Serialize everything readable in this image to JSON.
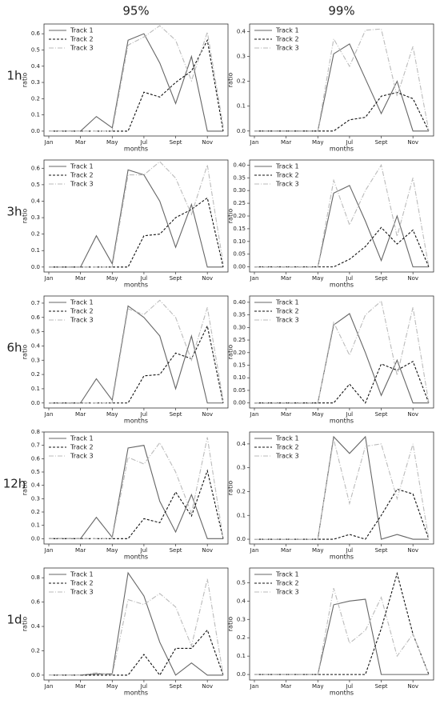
{
  "columns": [
    "95%",
    "99%"
  ],
  "rows": [
    "1h",
    "3h",
    "6h",
    "12h",
    "1d"
  ],
  "chart_data": [
    {
      "type": "line",
      "xlabel": "months",
      "ylabel": "ratio",
      "legend": "upper left",
      "categories": [
        "Jan",
        null,
        "Mar",
        null,
        "May",
        null,
        "Jul",
        null,
        "Sept",
        null,
        "Nov",
        null
      ],
      "ylim": [
        -0.03,
        0.66
      ],
      "yticks": [
        {
          "value": 0,
          "label": "0.0"
        },
        {
          "value": 0.1,
          "label": "0.1"
        },
        {
          "value": 0.2,
          "label": "0.2"
        },
        {
          "value": 0.3,
          "label": "0.3"
        },
        {
          "value": 0.4,
          "label": "0.4"
        },
        {
          "value": 0.5,
          "label": "0.5"
        },
        {
          "value": 0.6,
          "label": "0.6"
        }
      ],
      "series": [
        {
          "name": "Track 1",
          "color": "#666666",
          "linestyle": "solid",
          "values": [
            0,
            0,
            0,
            0.09,
            0.02,
            0.56,
            0.6,
            0.42,
            0.17,
            0.46,
            0,
            0
          ]
        },
        {
          "name": "Track 2",
          "color": "#111111",
          "linestyle": "dashed",
          "values": [
            0,
            0,
            0,
            0,
            0,
            0,
            0.24,
            0.21,
            0.3,
            0.37,
            0.56,
            0
          ]
        },
        {
          "name": "Track 3",
          "color": "#bbbbbb",
          "linestyle": "dashdot",
          "values": [
            0,
            0,
            0,
            0,
            0,
            0.53,
            0.58,
            0.65,
            0.56,
            0.31,
            0.61,
            0.03
          ]
        }
      ]
    },
    {
      "type": "line",
      "xlabel": "months",
      "ylabel": "ratio",
      "legend": "upper left",
      "categories": [
        "Jan",
        null,
        "Mar",
        null,
        "May",
        null,
        "Jul",
        null,
        "Sept",
        null,
        "Nov",
        null
      ],
      "ylim": [
        -0.02,
        0.43
      ],
      "yticks": [
        {
          "value": 0,
          "label": "0.0"
        },
        {
          "value": 0.1,
          "label": "0.1"
        },
        {
          "value": 0.2,
          "label": "0.2"
        },
        {
          "value": 0.3,
          "label": "0.3"
        },
        {
          "value": 0.4,
          "label": "0.4"
        }
      ],
      "series": [
        {
          "name": "Track 1",
          "color": "#666666",
          "linestyle": "solid",
          "values": [
            0,
            0,
            0,
            0,
            0,
            0.31,
            0.35,
            0.21,
            0.07,
            0.2,
            0,
            0
          ]
        },
        {
          "name": "Track 2",
          "color": "#111111",
          "linestyle": "dashed",
          "values": [
            0,
            0,
            0,
            0,
            0,
            0,
            0.045,
            0.055,
            0.14,
            0.155,
            0.13,
            0
          ]
        },
        {
          "name": "Track 3",
          "color": "#bbbbbb",
          "linestyle": "dashdot",
          "values": [
            0,
            0,
            0,
            0,
            0,
            0.37,
            0.26,
            0.405,
            0.41,
            0.14,
            0.34,
            0
          ]
        }
      ]
    },
    {
      "type": "line",
      "xlabel": "months",
      "ylabel": "ratio",
      "legend": "upper left",
      "categories": [
        "Jan",
        null,
        "Mar",
        null,
        "May",
        null,
        "Jul",
        null,
        "Sept",
        null,
        "Nov",
        null
      ],
      "ylim": [
        -0.03,
        0.65
      ],
      "yticks": [
        {
          "value": 0,
          "label": "0.0"
        },
        {
          "value": 0.1,
          "label": "0.1"
        },
        {
          "value": 0.2,
          "label": "0.2"
        },
        {
          "value": 0.3,
          "label": "0.3"
        },
        {
          "value": 0.4,
          "label": "0.4"
        },
        {
          "value": 0.5,
          "label": "0.5"
        },
        {
          "value": 0.6,
          "label": "0.6"
        }
      ],
      "series": [
        {
          "name": "Track 1",
          "color": "#666666",
          "linestyle": "solid",
          "values": [
            0,
            0,
            0,
            0.19,
            0.02,
            0.59,
            0.56,
            0.4,
            0.12,
            0.38,
            0,
            0
          ]
        },
        {
          "name": "Track 2",
          "color": "#111111",
          "linestyle": "dashed",
          "values": [
            0,
            0,
            0,
            0,
            0,
            0,
            0.19,
            0.2,
            0.3,
            0.35,
            0.42,
            0
          ]
        },
        {
          "name": "Track 3",
          "color": "#bbbbbb",
          "linestyle": "dashdot",
          "values": [
            0,
            0,
            0,
            0,
            0,
            0.56,
            0.56,
            0.64,
            0.54,
            0.32,
            0.62,
            0.02
          ]
        }
      ]
    },
    {
      "type": "line",
      "xlabel": "months",
      "ylabel": "ratio",
      "legend": "upper left",
      "categories": [
        "Jan",
        null,
        "Mar",
        null,
        "May",
        null,
        "Jul",
        null,
        "Sept",
        null,
        "Nov",
        null
      ],
      "ylim": [
        -0.02,
        0.42
      ],
      "yticks": [
        {
          "value": 0,
          "label": "0.00"
        },
        {
          "value": 0.05,
          "label": "0.05"
        },
        {
          "value": 0.1,
          "label": "0.10"
        },
        {
          "value": 0.15,
          "label": "0.15"
        },
        {
          "value": 0.2,
          "label": "0.20"
        },
        {
          "value": 0.25,
          "label": "0.25"
        },
        {
          "value": 0.3,
          "label": "0.30"
        },
        {
          "value": 0.35,
          "label": "0.35"
        },
        {
          "value": 0.4,
          "label": "0.40"
        }
      ],
      "series": [
        {
          "name": "Track 1",
          "color": "#666666",
          "linestyle": "solid",
          "values": [
            0,
            0,
            0,
            0,
            0,
            0.29,
            0.32,
            0.18,
            0.025,
            0.2,
            0,
            0
          ]
        },
        {
          "name": "Track 2",
          "color": "#111111",
          "linestyle": "dashed",
          "values": [
            0,
            0,
            0,
            0,
            0,
            0,
            0.03,
            0.08,
            0.155,
            0.09,
            0.145,
            0
          ]
        },
        {
          "name": "Track 3",
          "color": "#bbbbbb",
          "linestyle": "dashdot",
          "values": [
            0,
            0,
            0,
            0,
            0,
            0.34,
            0.165,
            0.3,
            0.4,
            0.12,
            0.35,
            0
          ]
        }
      ]
    },
    {
      "type": "line",
      "xlabel": "months",
      "ylabel": "ratio",
      "legend": "upper left",
      "categories": [
        "Jan",
        null,
        "Mar",
        null,
        "May",
        null,
        "Jul",
        null,
        "Sept",
        null,
        "Nov",
        null
      ],
      "ylim": [
        -0.035,
        0.75
      ],
      "yticks": [
        {
          "value": 0,
          "label": "0.0"
        },
        {
          "value": 0.1,
          "label": "0.1"
        },
        {
          "value": 0.2,
          "label": "0.2"
        },
        {
          "value": 0.3,
          "label": "0.3"
        },
        {
          "value": 0.4,
          "label": "0.4"
        },
        {
          "value": 0.5,
          "label": "0.5"
        },
        {
          "value": 0.6,
          "label": "0.6"
        },
        {
          "value": 0.7,
          "label": "0.7"
        }
      ],
      "series": [
        {
          "name": "Track 1",
          "color": "#666666",
          "linestyle": "solid",
          "values": [
            0,
            0,
            0,
            0.17,
            0.02,
            0.68,
            0.6,
            0.47,
            0.1,
            0.47,
            0,
            0
          ]
        },
        {
          "name": "Track 2",
          "color": "#111111",
          "linestyle": "dashed",
          "values": [
            0,
            0,
            0,
            0,
            0,
            0,
            0.19,
            0.2,
            0.35,
            0.31,
            0.54,
            0
          ]
        },
        {
          "name": "Track 3",
          "color": "#bbbbbb",
          "linestyle": "dashdot",
          "values": [
            0,
            0,
            0,
            0,
            0,
            0.66,
            0.62,
            0.72,
            0.6,
            0.3,
            0.67,
            0.02
          ]
        }
      ]
    },
    {
      "type": "line",
      "xlabel": "months",
      "ylabel": "ratio",
      "legend": "upper left",
      "categories": [
        "Jan",
        null,
        "Mar",
        null,
        "May",
        null,
        "Jul",
        null,
        "Sept",
        null,
        "Nov",
        null
      ],
      "ylim": [
        -0.02,
        0.425
      ],
      "yticks": [
        {
          "value": 0,
          "label": "0.00"
        },
        {
          "value": 0.05,
          "label": "0.05"
        },
        {
          "value": 0.1,
          "label": "0.10"
        },
        {
          "value": 0.15,
          "label": "0.15"
        },
        {
          "value": 0.2,
          "label": "0.20"
        },
        {
          "value": 0.25,
          "label": "0.25"
        },
        {
          "value": 0.3,
          "label": "0.30"
        },
        {
          "value": 0.35,
          "label": "0.35"
        },
        {
          "value": 0.4,
          "label": "0.40"
        }
      ],
      "series": [
        {
          "name": "Track 1",
          "color": "#666666",
          "linestyle": "solid",
          "values": [
            0,
            0,
            0,
            0,
            0,
            0.31,
            0.355,
            0.2,
            0.03,
            0.17,
            0,
            0
          ]
        },
        {
          "name": "Track 2",
          "color": "#111111",
          "linestyle": "dashed",
          "values": [
            0,
            0,
            0,
            0,
            0,
            0,
            0.075,
            0,
            0.155,
            0.13,
            0.165,
            0
          ]
        },
        {
          "name": "Track 3",
          "color": "#bbbbbb",
          "linestyle": "dashdot",
          "values": [
            0,
            0,
            0,
            0,
            0,
            0.32,
            0.19,
            0.35,
            0.405,
            0.11,
            0.38,
            0
          ]
        }
      ]
    },
    {
      "type": "line",
      "xlabel": "months",
      "ylabel": "ratio",
      "legend": "upper left",
      "categories": [
        "Jan",
        null,
        "Mar",
        null,
        "May",
        null,
        "Jul",
        null,
        "Sept",
        null,
        "Nov",
        null
      ],
      "ylim": [
        -0.04,
        0.8
      ],
      "yticks": [
        {
          "value": 0,
          "label": "0.0"
        },
        {
          "value": 0.1,
          "label": "0.1"
        },
        {
          "value": 0.2,
          "label": "0.2"
        },
        {
          "value": 0.3,
          "label": "0.3"
        },
        {
          "value": 0.4,
          "label": "0.4"
        },
        {
          "value": 0.5,
          "label": "0.5"
        },
        {
          "value": 0.6,
          "label": "0.6"
        },
        {
          "value": 0.7,
          "label": "0.7"
        },
        {
          "value": 0.8,
          "label": "0.8"
        }
      ],
      "series": [
        {
          "name": "Track 1",
          "color": "#666666",
          "linestyle": "solid",
          "values": [
            0,
            0,
            0,
            0.16,
            0.01,
            0.68,
            0.7,
            0.28,
            0.05,
            0.33,
            0,
            0
          ]
        },
        {
          "name": "Track 2",
          "color": "#111111",
          "linestyle": "dashed",
          "values": [
            0,
            0,
            0,
            0,
            0,
            0,
            0.15,
            0.12,
            0.35,
            0.17,
            0.51,
            0
          ]
        },
        {
          "name": "Track 3",
          "color": "#bbbbbb",
          "linestyle": "dashdot",
          "values": [
            0,
            0,
            0,
            0,
            0,
            0.61,
            0.56,
            0.72,
            0.5,
            0.19,
            0.76,
            0
          ]
        }
      ]
    },
    {
      "type": "line",
      "xlabel": "months",
      "ylabel": "ratio",
      "legend": "upper left",
      "categories": [
        "Jan",
        null,
        "Mar",
        null,
        "May",
        null,
        "Jul",
        null,
        "Sept",
        null,
        "Nov",
        null
      ],
      "ylim": [
        -0.02,
        0.45
      ],
      "yticks": [
        {
          "value": 0,
          "label": "0.0"
        },
        {
          "value": 0.1,
          "label": "0.1"
        },
        {
          "value": 0.2,
          "label": "0.2"
        },
        {
          "value": 0.3,
          "label": "0.3"
        },
        {
          "value": 0.4,
          "label": "0.4"
        }
      ],
      "series": [
        {
          "name": "Track 1",
          "color": "#666666",
          "linestyle": "solid",
          "values": [
            0,
            0,
            0,
            0,
            0,
            0.43,
            0.36,
            0.43,
            0,
            0.02,
            0,
            0
          ]
        },
        {
          "name": "Track 2",
          "color": "#111111",
          "linestyle": "dashed",
          "values": [
            0,
            0,
            0,
            0,
            0,
            0,
            0.02,
            0,
            0.1,
            0.21,
            0.19,
            0
          ]
        },
        {
          "name": "Track 3",
          "color": "#bbbbbb",
          "linestyle": "dashdot",
          "values": [
            0,
            0,
            0,
            0,
            0,
            0.42,
            0.15,
            0.39,
            0.4,
            0.17,
            0.4,
            0
          ]
        }
      ]
    },
    {
      "type": "line",
      "xlabel": "months",
      "ylabel": "ratio",
      "legend": "upper left",
      "categories": [
        "Jan",
        null,
        "Mar",
        null,
        "May",
        null,
        "Jul",
        null,
        "Sept",
        null,
        "Nov",
        null
      ],
      "ylim": [
        -0.04,
        0.88
      ],
      "yticks": [
        {
          "value": 0,
          "label": "0.0"
        },
        {
          "value": 0.2,
          "label": "0.2"
        },
        {
          "value": 0.4,
          "label": "0.4"
        },
        {
          "value": 0.6,
          "label": "0.6"
        },
        {
          "value": 0.8,
          "label": "0.8"
        }
      ],
      "series": [
        {
          "name": "Track 1",
          "color": "#666666",
          "linestyle": "solid",
          "values": [
            0,
            0,
            0,
            0.01,
            0.01,
            0.84,
            0.65,
            0.27,
            0,
            0.1,
            0,
            0
          ]
        },
        {
          "name": "Track 2",
          "color": "#111111",
          "linestyle": "dashed",
          "values": [
            0,
            0,
            0,
            0,
            0,
            0,
            0.17,
            0,
            0.22,
            0.22,
            0.37,
            0
          ]
        },
        {
          "name": "Track 3",
          "color": "#bbbbbb",
          "linestyle": "dashdot",
          "values": [
            0,
            0,
            0,
            0.02,
            0,
            0.62,
            0.58,
            0.67,
            0.56,
            0.24,
            0.79,
            0
          ]
        }
      ]
    },
    {
      "type": "line",
      "xlabel": "months",
      "ylabel": "ratio",
      "legend": "upper left",
      "categories": [
        "Jan",
        null,
        "Mar",
        null,
        "May",
        null,
        "Jul",
        null,
        "Sept",
        null,
        "Nov",
        null
      ],
      "ylim": [
        -0.03,
        0.58
      ],
      "yticks": [
        {
          "value": 0,
          "label": "0.0"
        },
        {
          "value": 0.1,
          "label": "0.1"
        },
        {
          "value": 0.2,
          "label": "0.2"
        },
        {
          "value": 0.3,
          "label": "0.3"
        },
        {
          "value": 0.4,
          "label": "0.4"
        },
        {
          "value": 0.5,
          "label": "0.5"
        }
      ],
      "series": [
        {
          "name": "Track 1",
          "color": "#666666",
          "linestyle": "solid",
          "values": [
            0,
            0,
            0,
            0,
            0,
            0.38,
            0.4,
            0.41,
            0,
            0,
            0,
            0
          ]
        },
        {
          "name": "Track 2",
          "color": "#111111",
          "linestyle": "dashed",
          "values": [
            0,
            0,
            0,
            0,
            0,
            0,
            0,
            0,
            0.25,
            0.55,
            0.22,
            0
          ]
        },
        {
          "name": "Track 3",
          "color": "#bbbbbb",
          "linestyle": "dashdot",
          "values": [
            0,
            0,
            0,
            0,
            0,
            0.47,
            0.17,
            0.24,
            0.42,
            0.1,
            0.22,
            0
          ]
        }
      ]
    }
  ]
}
